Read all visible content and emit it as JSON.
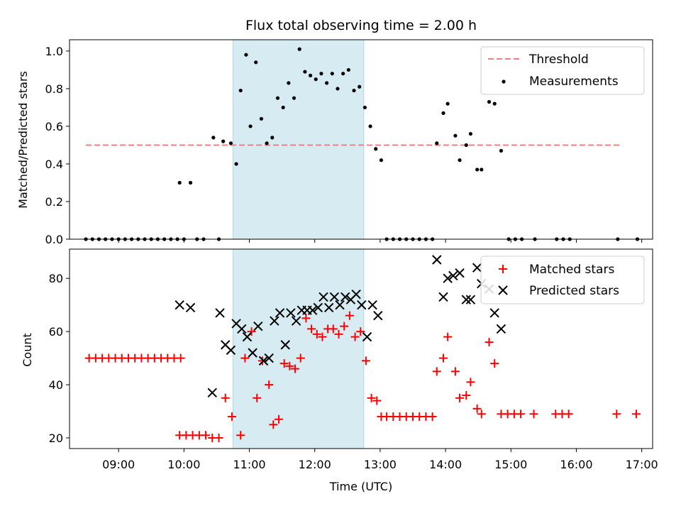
{
  "chart_data": [
    {
      "type": "scatter",
      "title": "Flux total observing time = 2.00 h",
      "ylabel": "Matched/Predicted stars",
      "xlabel": "",
      "xlim": [
        "08:15",
        "17:10"
      ],
      "ylim": [
        0,
        1.06
      ],
      "yticks": [
        "0.0",
        "0.2",
        "0.4",
        "0.6",
        "0.8",
        "1.0"
      ],
      "highlight_span": [
        "10:45",
        "12:45"
      ],
      "highlight_color": "#add8e6",
      "legend_position": "top-right",
      "threshold": {
        "name": "Threshold",
        "value": 0.5,
        "x_range": [
          "08:30",
          "16:40"
        ],
        "color": "#f08080",
        "style": "dashed"
      },
      "series": [
        {
          "name": "Measurements",
          "marker": "dot",
          "color": "#000000",
          "points": [
            [
              "08:30",
              0
            ],
            [
              "08:36",
              0
            ],
            [
              "08:42",
              0
            ],
            [
              "08:48",
              0
            ],
            [
              "08:54",
              0
            ],
            [
              "09:00",
              0
            ],
            [
              "09:06",
              0
            ],
            [
              "09:12",
              0
            ],
            [
              "09:18",
              0
            ],
            [
              "09:24",
              0
            ],
            [
              "09:30",
              0
            ],
            [
              "09:36",
              0
            ],
            [
              "09:42",
              0
            ],
            [
              "09:48",
              0
            ],
            [
              "09:54",
              0
            ],
            [
              "09:56",
              0.3
            ],
            [
              "10:06",
              0.3
            ],
            [
              "10:00",
              0
            ],
            [
              "10:12",
              0
            ],
            [
              "10:18",
              0
            ],
            [
              "10:32",
              0
            ],
            [
              "10:27",
              0.54
            ],
            [
              "10:36",
              0.52
            ],
            [
              "10:43",
              0.51
            ],
            [
              "10:48",
              0.4
            ],
            [
              "10:52",
              0.79
            ],
            [
              "10:57",
              0.98
            ],
            [
              "11:01",
              0.6
            ],
            [
              "11:06",
              0.94
            ],
            [
              "11:11",
              0.64
            ],
            [
              "11:16",
              0.51
            ],
            [
              "11:21",
              0.54
            ],
            [
              "11:26",
              0.75
            ],
            [
              "11:31",
              0.7
            ],
            [
              "11:36",
              0.83
            ],
            [
              "11:41",
              0.75
            ],
            [
              "11:46",
              1.01
            ],
            [
              "11:51",
              0.89
            ],
            [
              "11:56",
              0.87
            ],
            [
              "12:01",
              0.85
            ],
            [
              "12:06",
              0.88
            ],
            [
              "12:11",
              0.83
            ],
            [
              "12:16",
              0.88
            ],
            [
              "12:21",
              0.8
            ],
            [
              "12:26",
              0.88
            ],
            [
              "12:31",
              0.9
            ],
            [
              "12:36",
              0.79
            ],
            [
              "12:41",
              0.81
            ],
            [
              "12:46",
              0.7
            ],
            [
              "12:51",
              0.6
            ],
            [
              "12:56",
              0.48
            ],
            [
              "13:01",
              0.42
            ],
            [
              "13:06",
              0
            ],
            [
              "13:12",
              0
            ],
            [
              "13:18",
              0
            ],
            [
              "13:24",
              0
            ],
            [
              "13:30",
              0
            ],
            [
              "13:36",
              0
            ],
            [
              "13:42",
              0
            ],
            [
              "13:48",
              0
            ],
            [
              "13:52",
              0.51
            ],
            [
              "13:58",
              0.67
            ],
            [
              "14:02",
              0.72
            ],
            [
              "14:09",
              0.55
            ],
            [
              "14:13",
              0.42
            ],
            [
              "14:19",
              0.5
            ],
            [
              "14:23",
              0.56
            ],
            [
              "14:29",
              0.37
            ],
            [
              "14:33",
              0.37
            ],
            [
              "14:40",
              0.73
            ],
            [
              "14:45",
              0.72
            ],
            [
              "14:51",
              0.47
            ],
            [
              "14:58",
              0
            ],
            [
              "15:04",
              0
            ],
            [
              "15:10",
              0
            ],
            [
              "15:22",
              0
            ],
            [
              "15:42",
              0
            ],
            [
              "15:48",
              0
            ],
            [
              "15:54",
              0
            ],
            [
              "16:38",
              0
            ],
            [
              "16:56",
              0
            ]
          ]
        }
      ]
    },
    {
      "type": "scatter",
      "title": "",
      "xlabel": "Time (UTC)",
      "ylabel": "Count",
      "xlim": [
        "08:15",
        "17:10"
      ],
      "ylim": [
        16,
        91
      ],
      "xticks": [
        "09:00",
        "10:00",
        "11:00",
        "12:00",
        "13:00",
        "14:00",
        "15:00",
        "16:00",
        "17:00"
      ],
      "yticks": [
        "20",
        "40",
        "60",
        "80"
      ],
      "highlight_span": [
        "10:45",
        "12:45"
      ],
      "highlight_color": "#add8e6",
      "legend_position": "top-right",
      "series": [
        {
          "name": "Matched stars",
          "marker": "plus",
          "color": "#ff0000",
          "points": [
            [
              "08:33",
              50
            ],
            [
              "08:39",
              50
            ],
            [
              "08:45",
              50
            ],
            [
              "08:51",
              50
            ],
            [
              "08:57",
              50
            ],
            [
              "09:03",
              50
            ],
            [
              "09:09",
              50
            ],
            [
              "09:15",
              50
            ],
            [
              "09:21",
              50
            ],
            [
              "09:27",
              50
            ],
            [
              "09:33",
              50
            ],
            [
              "09:39",
              50
            ],
            [
              "09:45",
              50
            ],
            [
              "09:51",
              50
            ],
            [
              "09:57",
              50
            ],
            [
              "09:56",
              21
            ],
            [
              "10:02",
              21
            ],
            [
              "10:08",
              21
            ],
            [
              "10:14",
              21
            ],
            [
              "10:20",
              21
            ],
            [
              "10:26",
              20
            ],
            [
              "10:32",
              20
            ],
            [
              "10:38",
              35
            ],
            [
              "10:44",
              28
            ],
            [
              "10:52",
              21
            ],
            [
              "10:56",
              50
            ],
            [
              "11:02",
              60
            ],
            [
              "11:07",
              35
            ],
            [
              "11:12",
              49
            ],
            [
              "11:18",
              40
            ],
            [
              "11:22",
              25
            ],
            [
              "11:27",
              27
            ],
            [
              "11:32",
              48
            ],
            [
              "11:37",
              47
            ],
            [
              "11:42",
              46
            ],
            [
              "11:47",
              50
            ],
            [
              "11:52",
              65
            ],
            [
              "11:57",
              61
            ],
            [
              "12:02",
              59
            ],
            [
              "12:07",
              58
            ],
            [
              "12:12",
              61
            ],
            [
              "12:17",
              61
            ],
            [
              "12:22",
              59
            ],
            [
              "12:27",
              62
            ],
            [
              "12:32",
              66
            ],
            [
              "12:37",
              58
            ],
            [
              "12:42",
              60
            ],
            [
              "12:47",
              49
            ],
            [
              "12:52",
              35
            ],
            [
              "12:57",
              34
            ],
            [
              "13:01",
              28
            ],
            [
              "13:06",
              28
            ],
            [
              "13:12",
              28
            ],
            [
              "13:18",
              28
            ],
            [
              "13:24",
              28
            ],
            [
              "13:30",
              28
            ],
            [
              "13:36",
              28
            ],
            [
              "13:42",
              28
            ],
            [
              "13:48",
              28
            ],
            [
              "13:52",
              45
            ],
            [
              "13:58",
              50
            ],
            [
              "14:02",
              58
            ],
            [
              "14:09",
              45
            ],
            [
              "14:13",
              35
            ],
            [
              "14:19",
              36
            ],
            [
              "14:23",
              41
            ],
            [
              "14:29",
              31
            ],
            [
              "14:33",
              29
            ],
            [
              "14:40",
              56
            ],
            [
              "14:45",
              48
            ],
            [
              "14:51",
              29
            ],
            [
              "14:57",
              29
            ],
            [
              "15:03",
              29
            ],
            [
              "15:09",
              29
            ],
            [
              "15:21",
              29
            ],
            [
              "15:41",
              29
            ],
            [
              "15:47",
              29
            ],
            [
              "15:53",
              29
            ],
            [
              "16:37",
              29
            ],
            [
              "16:55",
              29
            ]
          ]
        },
        {
          "name": "Predicted stars",
          "marker": "x",
          "color": "#000000",
          "points": [
            [
              "09:56",
              70
            ],
            [
              "10:06",
              69
            ],
            [
              "10:26",
              37
            ],
            [
              "10:33",
              67
            ],
            [
              "10:38",
              55
            ],
            [
              "10:43",
              53
            ],
            [
              "10:48",
              63
            ],
            [
              "10:53",
              61
            ],
            [
              "10:58",
              58
            ],
            [
              "11:03",
              52
            ],
            [
              "11:08",
              62
            ],
            [
              "11:13",
              49
            ],
            [
              "11:18",
              50
            ],
            [
              "11:23",
              64
            ],
            [
              "11:28",
              67
            ],
            [
              "11:33",
              55
            ],
            [
              "11:38",
              67
            ],
            [
              "11:43",
              64
            ],
            [
              "11:48",
              68
            ],
            [
              "11:53",
              68
            ],
            [
              "11:58",
              68
            ],
            [
              "12:03",
              69
            ],
            [
              "12:08",
              73
            ],
            [
              "12:13",
              69
            ],
            [
              "12:18",
              73
            ],
            [
              "12:23",
              70
            ],
            [
              "12:28",
              73
            ],
            [
              "12:33",
              72
            ],
            [
              "12:38",
              74
            ],
            [
              "12:43",
              70
            ],
            [
              "12:48",
              58
            ],
            [
              "12:53",
              70
            ],
            [
              "12:58",
              66
            ],
            [
              "13:52",
              87
            ],
            [
              "13:58",
              73
            ],
            [
              "14:02",
              80
            ],
            [
              "14:07",
              81
            ],
            [
              "14:13",
              82
            ],
            [
              "14:19",
              72
            ],
            [
              "14:23",
              72
            ],
            [
              "14:29",
              84
            ],
            [
              "14:33",
              78
            ],
            [
              "14:40",
              76
            ],
            [
              "14:45",
              67
            ],
            [
              "14:51",
              61
            ]
          ]
        }
      ]
    }
  ]
}
